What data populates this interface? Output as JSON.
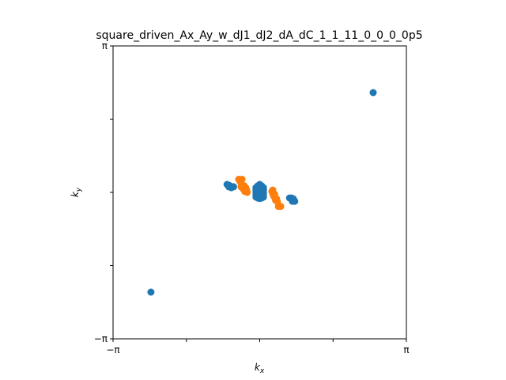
{
  "chart_data": {
    "type": "scatter",
    "title": "square_driven_Ax_Ay_w_dJ1_dJ2_dA_dC_1_1_11_0_0_0_0p5",
    "xlabel": {
      "base": "k",
      "sub": "x"
    },
    "ylabel": {
      "base": "k",
      "sub": "y"
    },
    "xlim": [
      -3.14159,
      3.14159
    ],
    "ylim": [
      -3.14159,
      3.14159
    ],
    "x_ticks": [
      {
        "value": -3.14159,
        "label": "−π"
      },
      {
        "value": -1.5708,
        "label": ""
      },
      {
        "value": 0,
        "label": ""
      },
      {
        "value": 1.5708,
        "label": ""
      },
      {
        "value": 3.14159,
        "label": "π"
      }
    ],
    "y_ticks": [
      {
        "value": -3.14159,
        "label": "−π"
      },
      {
        "value": -1.5708,
        "label": ""
      },
      {
        "value": 0,
        "label": ""
      },
      {
        "value": 1.5708,
        "label": ""
      },
      {
        "value": 3.14159,
        "label": "π"
      }
    ],
    "grid": false,
    "series": [
      {
        "color": "#1f77b4",
        "points": [
          [
            2.43,
            2.14
          ],
          [
            -2.33,
            -2.14
          ],
          [
            -0.7,
            0.17
          ],
          [
            -0.66,
            0.12
          ],
          [
            -0.61,
            0.1
          ],
          [
            -0.56,
            0.12
          ],
          [
            -0.65,
            0.15
          ],
          [
            0.0,
            0.17
          ],
          [
            0.0,
            0.12
          ],
          [
            0.0,
            0.07
          ],
          [
            0.0,
            0.02
          ],
          [
            0.0,
            -0.03
          ],
          [
            0.0,
            -0.08
          ],
          [
            0.0,
            -0.13
          ],
          [
            -0.08,
            0.1
          ],
          [
            -0.08,
            0.05
          ],
          [
            -0.08,
            0.0
          ],
          [
            -0.08,
            -0.05
          ],
          [
            -0.08,
            -0.1
          ],
          [
            0.08,
            0.1
          ],
          [
            0.08,
            0.05
          ],
          [
            0.08,
            0.0
          ],
          [
            0.08,
            -0.05
          ],
          [
            0.08,
            -0.1
          ],
          [
            -0.04,
            0.14
          ],
          [
            0.04,
            0.14
          ],
          [
            -0.04,
            -0.12
          ],
          [
            0.04,
            -0.12
          ],
          [
            0.64,
            -0.12
          ],
          [
            0.68,
            -0.12
          ],
          [
            0.72,
            -0.14
          ],
          [
            0.75,
            -0.19
          ],
          [
            0.7,
            -0.19
          ]
        ]
      },
      {
        "color": "#ff7f0e",
        "points": [
          [
            -0.45,
            0.28
          ],
          [
            -0.38,
            0.28
          ],
          [
            -0.42,
            0.23
          ],
          [
            -0.39,
            0.18
          ],
          [
            -0.4,
            0.12
          ],
          [
            -0.33,
            0.14
          ],
          [
            -0.3,
            0.1
          ],
          [
            -0.28,
            0.05
          ],
          [
            -0.27,
            0.0
          ],
          [
            -0.32,
            0.02
          ],
          [
            -0.36,
            0.08
          ],
          [
            0.26,
            0.02
          ],
          [
            0.28,
            -0.03
          ],
          [
            0.32,
            -0.04
          ],
          [
            0.3,
            -0.08
          ],
          [
            0.33,
            -0.12
          ],
          [
            0.36,
            -0.14
          ],
          [
            0.34,
            -0.17
          ],
          [
            0.38,
            -0.2
          ],
          [
            0.4,
            -0.3
          ],
          [
            0.45,
            -0.3
          ],
          [
            0.28,
            0.05
          ]
        ]
      }
    ]
  }
}
